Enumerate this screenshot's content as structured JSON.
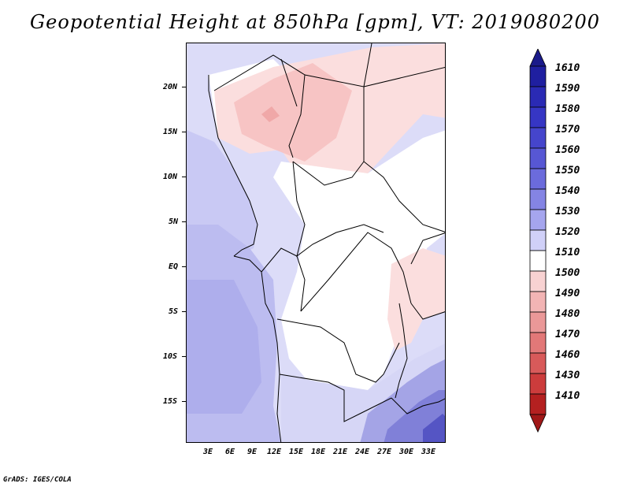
{
  "title": "Geopotential Height at 850hPa [gpm], VT: 2019080200",
  "footer": "GrADS: IGES/COLA",
  "map": {
    "lat_labels": [
      "20N",
      "15N",
      "10N",
      "5N",
      "EQ",
      "5S",
      "10S",
      "15S"
    ],
    "lon_labels": [
      "3E",
      "6E",
      "9E",
      "12E",
      "15E",
      "18E",
      "21E",
      "24E",
      "27E",
      "30E",
      "33E"
    ]
  },
  "colorbar": {
    "labels": [
      "1610",
      "1590",
      "1580",
      "1570",
      "1560",
      "1550",
      "1540",
      "1530",
      "1520",
      "1510",
      "1500",
      "1490",
      "1480",
      "1470",
      "1460",
      "1430",
      "1410"
    ],
    "colors": [
      "#1f1fa0",
      "#2a2ab4",
      "#3636c4",
      "#4545cc",
      "#5757d4",
      "#6b6bdc",
      "#8484e4",
      "#a5a5ee",
      "#d0d0f8",
      "#ffffff",
      "#f8d2d2",
      "#f2b4b4",
      "#ea9898",
      "#e27878",
      "#d85a5a",
      "#cc3c3c",
      "#b42020"
    ],
    "top_cap_color": "#1a1a8a",
    "bottom_cap_color": "#a01818"
  }
}
